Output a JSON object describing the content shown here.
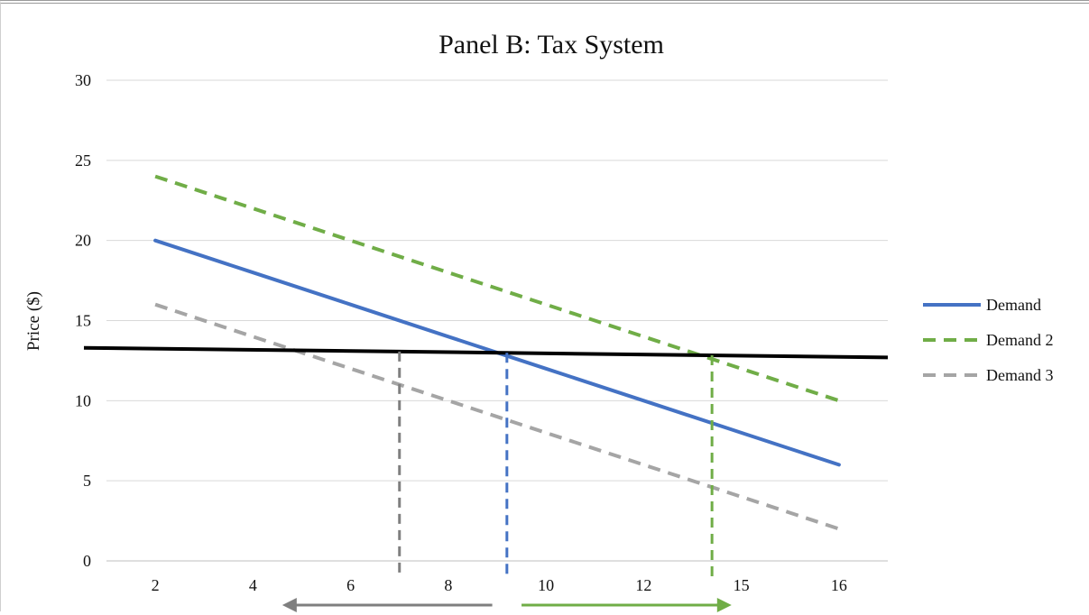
{
  "chart_data": {
    "type": "line",
    "title": "Panel B: Tax System",
    "xlabel": "",
    "ylabel": "Price ($)",
    "ylim": [
      0,
      30
    ],
    "yticks": [
      0,
      5,
      10,
      15,
      20,
      25,
      30
    ],
    "categories": [
      "2",
      "4",
      "6",
      "8",
      "10",
      "12",
      "15",
      "16"
    ],
    "grid": true,
    "legend_position": "right",
    "series": [
      {
        "name": "Demand",
        "style": "solid",
        "color": "#4472C4",
        "values": [
          20,
          18,
          16,
          14,
          12,
          10,
          8,
          6
        ]
      },
      {
        "name": "Demand 2",
        "style": "dashed",
        "color": "#70AD47",
        "values": [
          24,
          22,
          20,
          18,
          16,
          14,
          12,
          10
        ]
      },
      {
        "name": "Demand 3",
        "style": "dashed",
        "color": "#A5A5A5",
        "values": [
          16,
          14,
          12,
          10,
          8,
          6,
          4,
          2
        ]
      }
    ],
    "tax_line": {
      "color": "#000000",
      "y_start": 13.3,
      "y_end": 12.7
    },
    "markers": [
      {
        "series": "Demand 3",
        "x_index": 2.5,
        "color": "#7F7F7F"
      },
      {
        "series": "Demand",
        "x_index": 3.6,
        "color": "#4472C4"
      },
      {
        "series": "Demand 2",
        "x_index": 5.7,
        "color": "#70AD47"
      }
    ],
    "arrows": [
      {
        "direction": "left",
        "color": "#7F7F7F",
        "from_index": 3.45,
        "to_index": 1.3
      },
      {
        "direction": "right",
        "color": "#70AD47",
        "from_index": 3.75,
        "to_index": 5.9
      }
    ]
  }
}
